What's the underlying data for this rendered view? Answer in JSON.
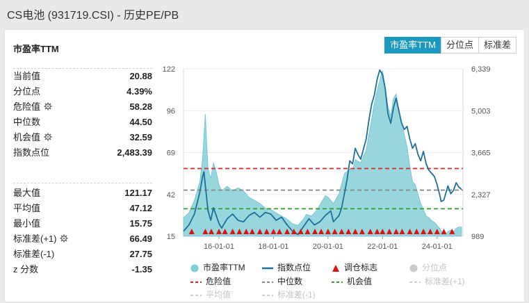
{
  "page_title": "CS电池 (931719.CSI) - 历史PE/PB",
  "card": {
    "title": "市盈率TTM",
    "tabs": [
      "市盈率TTM",
      "分位点",
      "标准差"
    ],
    "active_tab": 0
  },
  "stats_top": [
    {
      "label": "当前值",
      "value": "20.88",
      "gear": false
    },
    {
      "label": "分位点",
      "value": "4.39%",
      "gear": false
    },
    {
      "label": "危险值",
      "value": "58.28",
      "gear": true
    },
    {
      "label": "中位数",
      "value": "44.50",
      "gear": false
    },
    {
      "label": "机会值",
      "value": "32.59",
      "gear": true
    },
    {
      "label": "指数点位",
      "value": "2,483.39",
      "gear": false
    }
  ],
  "stats_bottom": [
    {
      "label": "最大值",
      "value": "121.17",
      "gear": false
    },
    {
      "label": "平均值",
      "value": "47.12",
      "gear": false
    },
    {
      "label": "最小值",
      "value": "15.75",
      "gear": false
    },
    {
      "label": "标准差(+1)",
      "value": "66.49",
      "gear": true
    },
    {
      "label": "标准差(-1)",
      "value": "27.75",
      "gear": false
    },
    {
      "label": "z 分数",
      "value": "-1.35",
      "gear": false
    }
  ],
  "legend": [
    {
      "label": "市盈率TTM",
      "kind": "dot",
      "color": "#7ecfd8",
      "dim": false
    },
    {
      "label": "指数点位",
      "kind": "line",
      "color": "#1b6f9a",
      "dim": false
    },
    {
      "label": "调仓标志",
      "kind": "tri",
      "color": "#e01010",
      "dim": false
    },
    {
      "label": "分位点",
      "kind": "dot",
      "color": "#cccccc",
      "dim": true
    },
    {
      "label": "危险值",
      "kind": "dash",
      "color": "#d62728",
      "dim": false
    },
    {
      "label": "中位数",
      "kind": "dash",
      "color": "#888888",
      "dim": false
    },
    {
      "label": "机会值",
      "kind": "dash",
      "color": "#2ca02c",
      "dim": false
    },
    {
      "label": "标准差(+1)",
      "kind": "dash",
      "color": "#cccccc",
      "dim": true
    },
    {
      "label": "平均值",
      "kind": "dash",
      "color": "#cccccc",
      "dim": true
    },
    {
      "label": "标准差(-1)",
      "kind": "dash",
      "color": "#cccccc",
      "dim": true
    }
  ],
  "chart_data": {
    "type": "area",
    "title": "市盈率TTM",
    "x_range": [
      2014.7,
      2024.95
    ],
    "ylim_left": [
      15,
      122
    ],
    "ylim_right": [
      989,
      6339
    ],
    "yticks_left": [
      "15",
      "42",
      "69",
      "96",
      "122"
    ],
    "yticks_right": [
      "989",
      "2,327",
      "3,665",
      "5,003",
      "6,339"
    ],
    "xticks": [
      {
        "label": "16-01-01",
        "x": 2016.0
      },
      {
        "label": "18-01-01",
        "x": 2018.0
      },
      {
        "label": "20-01-01",
        "x": 2020.0
      },
      {
        "label": "22-01-01",
        "x": 2022.0
      },
      {
        "label": "24-01-01",
        "x": 2024.0
      }
    ],
    "pe_series": [
      [
        2014.7,
        27
      ],
      [
        2014.9,
        30
      ],
      [
        2015.1,
        38
      ],
      [
        2015.3,
        50
      ],
      [
        2015.4,
        65
      ],
      [
        2015.45,
        80
      ],
      [
        2015.5,
        93
      ],
      [
        2015.55,
        75
      ],
      [
        2015.6,
        58
      ],
      [
        2015.7,
        52
      ],
      [
        2015.8,
        62
      ],
      [
        2015.9,
        56
      ],
      [
        2016.0,
        48
      ],
      [
        2016.1,
        44
      ],
      [
        2016.3,
        47
      ],
      [
        2016.5,
        44
      ],
      [
        2016.7,
        46
      ],
      [
        2016.9,
        44
      ],
      [
        2017.1,
        40
      ],
      [
        2017.3,
        38
      ],
      [
        2017.5,
        36
      ],
      [
        2017.7,
        33
      ],
      [
        2017.9,
        32
      ],
      [
        2018.1,
        30
      ],
      [
        2018.3,
        28
      ],
      [
        2018.5,
        26
      ],
      [
        2018.7,
        23
      ],
      [
        2018.9,
        22
      ],
      [
        2019.1,
        26
      ],
      [
        2019.2,
        29
      ],
      [
        2019.4,
        28
      ],
      [
        2019.6,
        32
      ],
      [
        2019.8,
        38
      ],
      [
        2019.9,
        41
      ],
      [
        2020.0,
        40
      ],
      [
        2020.2,
        36
      ],
      [
        2020.4,
        42
      ],
      [
        2020.6,
        55
      ],
      [
        2020.8,
        58
      ],
      [
        2020.9,
        57
      ],
      [
        2021.0,
        64
      ],
      [
        2021.2,
        62
      ],
      [
        2021.4,
        70
      ],
      [
        2021.5,
        80
      ],
      [
        2021.6,
        90
      ],
      [
        2021.7,
        100
      ],
      [
        2021.8,
        108
      ],
      [
        2021.9,
        115
      ],
      [
        2022.0,
        121
      ],
      [
        2022.1,
        110
      ],
      [
        2022.2,
        98
      ],
      [
        2022.3,
        92
      ],
      [
        2022.4,
        103
      ],
      [
        2022.5,
        106
      ],
      [
        2022.6,
        95
      ],
      [
        2022.7,
        88
      ],
      [
        2022.8,
        80
      ],
      [
        2022.9,
        72
      ],
      [
        2023.0,
        60
      ],
      [
        2023.1,
        50
      ],
      [
        2023.2,
        48
      ],
      [
        2023.3,
        42
      ],
      [
        2023.4,
        36
      ],
      [
        2023.5,
        32
      ],
      [
        2023.6,
        28
      ],
      [
        2023.7,
        27
      ],
      [
        2023.8,
        25
      ],
      [
        2023.9,
        24
      ],
      [
        2024.0,
        22
      ],
      [
        2024.1,
        20
      ],
      [
        2024.2,
        17
      ],
      [
        2024.3,
        16
      ],
      [
        2024.4,
        18
      ],
      [
        2024.5,
        19
      ],
      [
        2024.6,
        18
      ],
      [
        2024.7,
        20
      ],
      [
        2024.8,
        21
      ],
      [
        2024.9,
        20.88
      ]
    ],
    "index_series": [
      [
        2014.7,
        1150
      ],
      [
        2014.9,
        1350
      ],
      [
        2015.1,
        1700
      ],
      [
        2015.3,
        2400
      ],
      [
        2015.4,
        2900
      ],
      [
        2015.45,
        3050
      ],
      [
        2015.5,
        2600
      ],
      [
        2015.6,
        1800
      ],
      [
        2015.7,
        1500
      ],
      [
        2015.8,
        1900
      ],
      [
        2015.9,
        1650
      ],
      [
        2016.0,
        1400
      ],
      [
        2016.1,
        1250
      ],
      [
        2016.3,
        1550
      ],
      [
        2016.5,
        1700
      ],
      [
        2016.7,
        1500
      ],
      [
        2016.9,
        1450
      ],
      [
        2017.1,
        1650
      ],
      [
        2017.3,
        1750
      ],
      [
        2017.5,
        1600
      ],
      [
        2017.7,
        1750
      ],
      [
        2017.9,
        1700
      ],
      [
        2018.1,
        1500
      ],
      [
        2018.3,
        1600
      ],
      [
        2018.5,
        1350
      ],
      [
        2018.7,
        1150
      ],
      [
        2018.9,
        1050
      ],
      [
        2019.1,
        1300
      ],
      [
        2019.3,
        1550
      ],
      [
        2019.5,
        1350
      ],
      [
        2019.7,
        1450
      ],
      [
        2019.9,
        1650
      ],
      [
        2020.1,
        1800
      ],
      [
        2020.2,
        1450
      ],
      [
        2020.4,
        1650
      ],
      [
        2020.5,
        1900
      ],
      [
        2020.7,
        2800
      ],
      [
        2020.8,
        3400
      ],
      [
        2020.9,
        3300
      ],
      [
        2021.0,
        3800
      ],
      [
        2021.1,
        3600
      ],
      [
        2021.2,
        3450
      ],
      [
        2021.4,
        4100
      ],
      [
        2021.5,
        4700
      ],
      [
        2021.6,
        5200
      ],
      [
        2021.7,
        5500
      ],
      [
        2021.8,
        6000
      ],
      [
        2021.9,
        6300
      ],
      [
        2022.0,
        6150
      ],
      [
        2022.1,
        5700
      ],
      [
        2022.2,
        4900
      ],
      [
        2022.3,
        4600
      ],
      [
        2022.4,
        5100
      ],
      [
        2022.5,
        5400
      ],
      [
        2022.6,
        5000
      ],
      [
        2022.7,
        4600
      ],
      [
        2022.8,
        4400
      ],
      [
        2022.9,
        4500
      ],
      [
        2023.0,
        4100
      ],
      [
        2023.1,
        3800
      ],
      [
        2023.2,
        3950
      ],
      [
        2023.3,
        3600
      ],
      [
        2023.4,
        3400
      ],
      [
        2023.5,
        3700
      ],
      [
        2023.6,
        3300
      ],
      [
        2023.7,
        3100
      ],
      [
        2023.8,
        3000
      ],
      [
        2023.9,
        2900
      ],
      [
        2024.0,
        2650
      ],
      [
        2024.1,
        2300
      ],
      [
        2024.15,
        2100
      ],
      [
        2024.25,
        2150
      ],
      [
        2024.4,
        2600
      ],
      [
        2024.5,
        2350
      ],
      [
        2024.6,
        2450
      ],
      [
        2024.7,
        2700
      ],
      [
        2024.8,
        2560
      ],
      [
        2024.9,
        2483.39
      ]
    ],
    "rebalance_markers": [
      2015.0,
      2015.5,
      2015.72,
      2016.0,
      2016.22,
      2016.5,
      2016.75,
      2017.0,
      2017.22,
      2017.5,
      2017.75,
      2018.0,
      2018.22,
      2018.5,
      2018.75,
      2019.0,
      2019.25,
      2019.52,
      2019.75,
      2020.0,
      2020.25,
      2020.5,
      2020.75,
      2021.0,
      2021.25,
      2021.55,
      2021.8,
      2022.0,
      2022.25,
      2022.5,
      2022.72,
      2023.0,
      2023.25,
      2023.5,
      2023.75,
      2024.0,
      2024.25,
      2024.55
    ],
    "reference_lines": [
      {
        "name": "危险值",
        "value": 58.28,
        "color": "#d62728"
      },
      {
        "name": "中位数",
        "value": 44.5,
        "color": "#8c8c8c"
      },
      {
        "name": "机会值",
        "value": 32.59,
        "color": "#2ca02c"
      }
    ]
  }
}
